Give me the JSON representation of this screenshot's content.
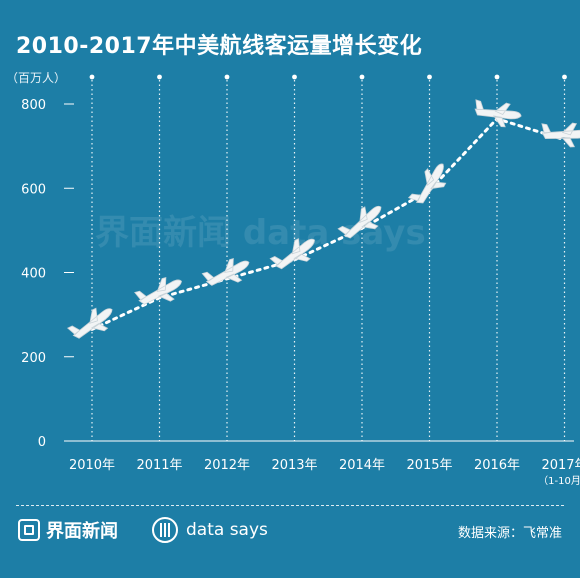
{
  "title": "2010-2017年中美航线客运量增长变化",
  "unit": "（百万人）",
  "watermark": "界面新闻   data says",
  "footer": {
    "brand": "界面新闻",
    "datasays": "data says",
    "source": "数据来源：飞常准"
  },
  "colors": {
    "background": "#1d7ea6",
    "foreground": "#ffffff"
  },
  "chart_data": {
    "type": "line",
    "title": "2010-2017年中美航线客运量增长变化",
    "ylabel": "（百万人）",
    "ylim": [
      0,
      800
    ],
    "yticks": [
      "0",
      "200",
      "400",
      "600",
      "800"
    ],
    "categories": [
      "2010年",
      "2011年",
      "2012年",
      "2013年",
      "2014年",
      "2015年",
      "2016年",
      "2017年"
    ],
    "category_notes": [
      "",
      "",
      "",
      "",
      "",
      "",
      "",
      "（1-10月）"
    ],
    "values": [
      265,
      340,
      385,
      430,
      505,
      595,
      765,
      715
    ],
    "grid": "vertical dotted",
    "legend": "none",
    "marker": "airplane-icon"
  }
}
